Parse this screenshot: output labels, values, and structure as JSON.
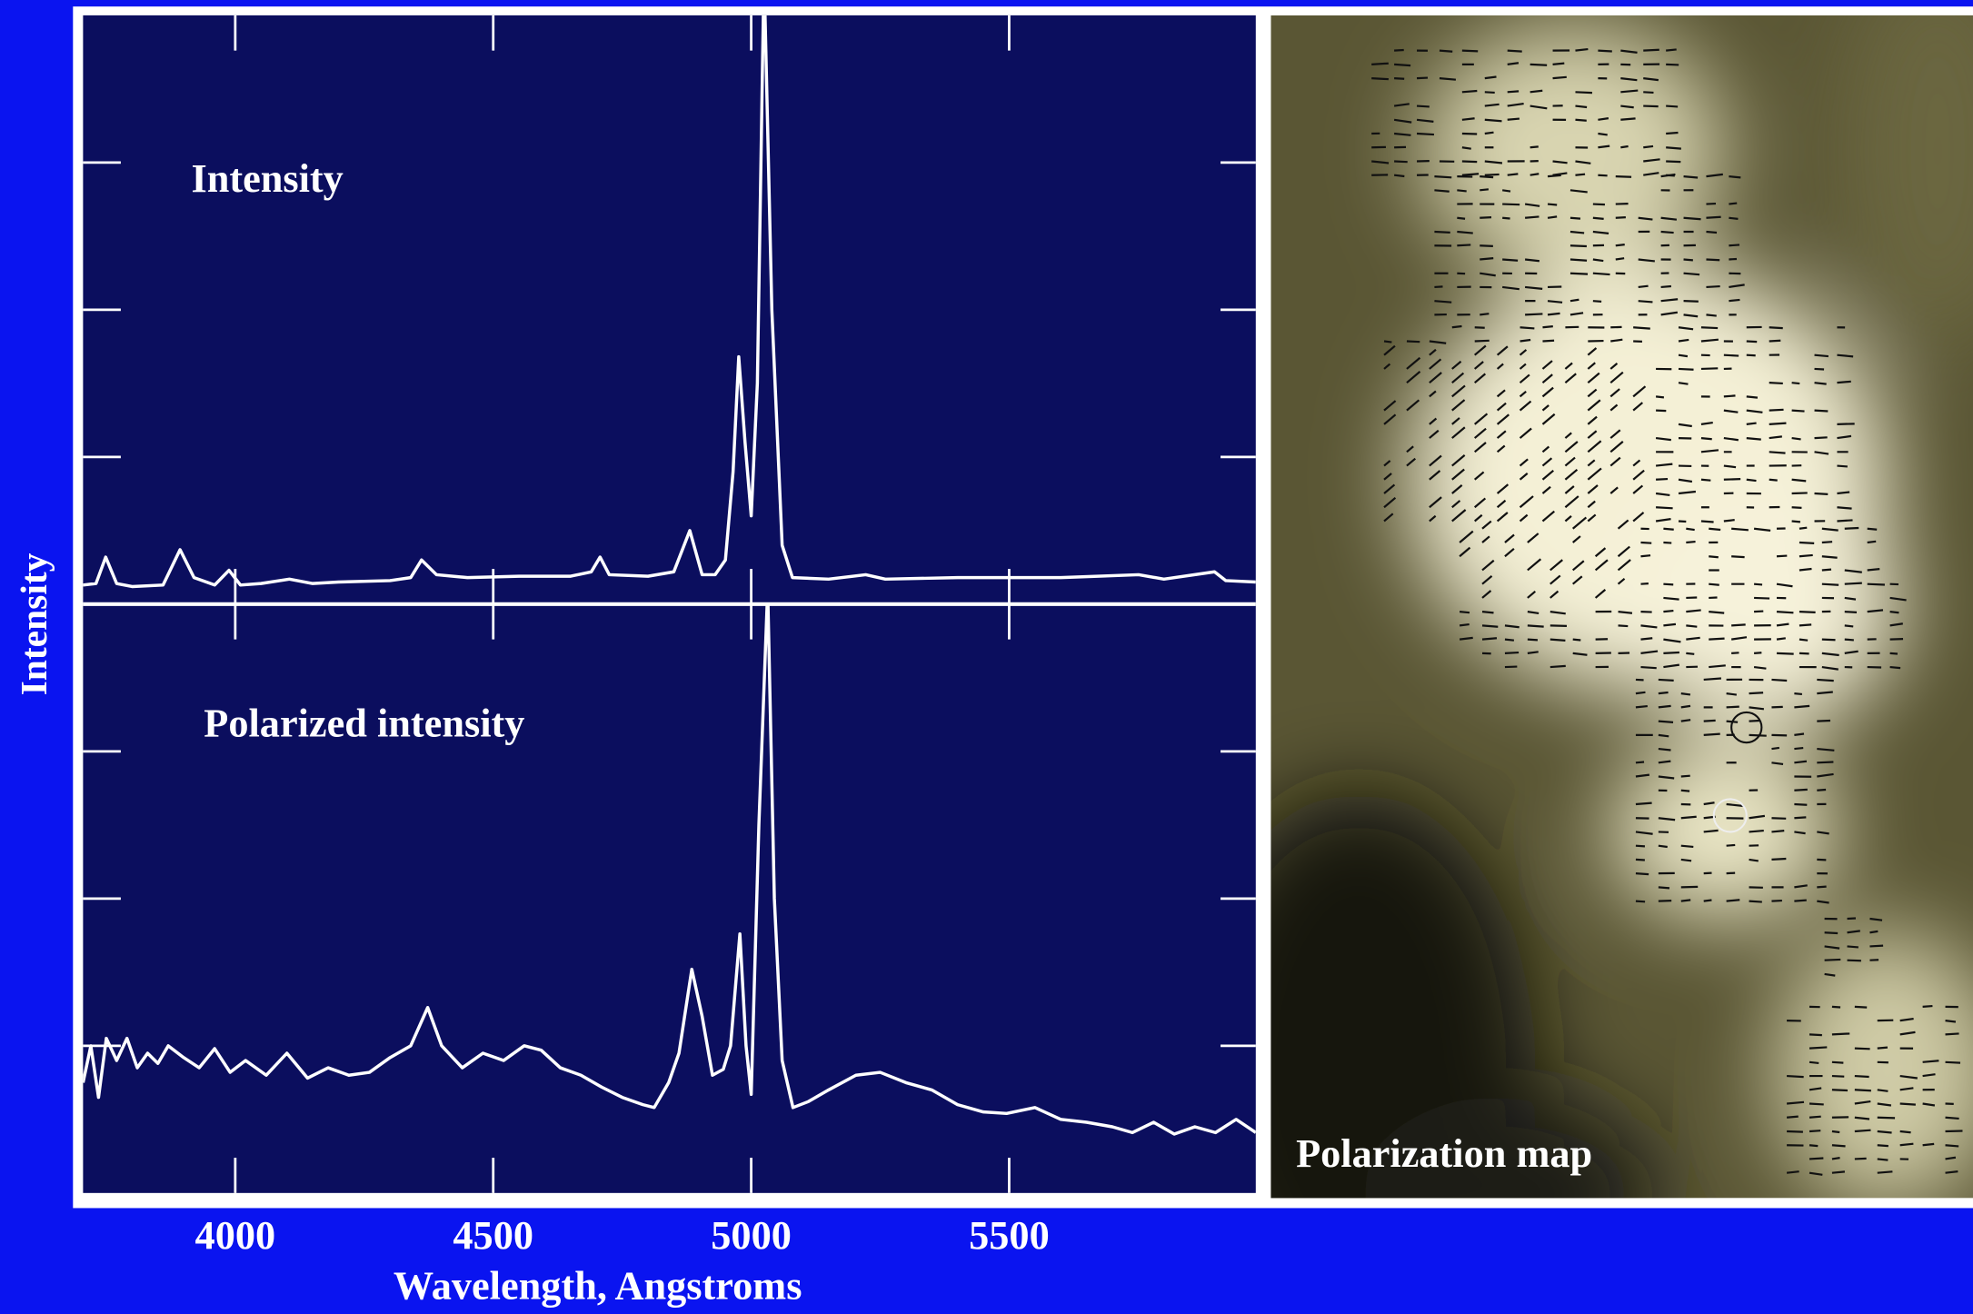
{
  "chart_data": [
    {
      "type": "line",
      "label": "Intensity",
      "ylabel": "Intensity",
      "color": "#ffffff",
      "xlim": [
        3705,
        5978
      ],
      "xticks": [
        4000,
        4500,
        5000,
        5500
      ],
      "ylim": [
        0,
        4
      ],
      "yticks": [
        1,
        2,
        3
      ],
      "x": [
        3705,
        3730,
        3749,
        3770,
        3800,
        3860,
        3893,
        3920,
        3960,
        3988,
        4010,
        4050,
        4105,
        4150,
        4200,
        4300,
        4340,
        4361,
        4390,
        4450,
        4550,
        4650,
        4690,
        4707,
        4725,
        4800,
        4850,
        4881,
        4905,
        4930,
        4950,
        4965,
        4976,
        4988,
        5000,
        5012,
        5025,
        5040,
        5060,
        5080,
        5150,
        5222,
        5260,
        5400,
        5600,
        5751,
        5800,
        5898,
        5920,
        5978
      ],
      "values": [
        0.13,
        0.14,
        0.32,
        0.14,
        0.12,
        0.13,
        0.37,
        0.18,
        0.13,
        0.23,
        0.13,
        0.14,
        0.17,
        0.14,
        0.15,
        0.16,
        0.18,
        0.3,
        0.2,
        0.18,
        0.19,
        0.19,
        0.22,
        0.32,
        0.2,
        0.19,
        0.22,
        0.5,
        0.2,
        0.2,
        0.3,
        0.9,
        1.68,
        1.1,
        0.6,
        1.5,
        4.3,
        2.0,
        0.4,
        0.18,
        0.17,
        0.2,
        0.17,
        0.18,
        0.18,
        0.2,
        0.17,
        0.22,
        0.16,
        0.15
      ]
    },
    {
      "type": "line",
      "label": "Polarized intensity",
      "xlabel": "Wavelength, Angstroms",
      "color": "#ffffff",
      "xlim": [
        3705,
        5978
      ],
      "xticks": [
        4000,
        4500,
        5000,
        5500
      ],
      "ylim": [
        0,
        4
      ],
      "yticks": [
        1,
        2,
        3
      ],
      "x": [
        3705,
        3720,
        3735,
        3750,
        3770,
        3790,
        3810,
        3830,
        3850,
        3870,
        3900,
        3930,
        3960,
        3990,
        4020,
        4060,
        4100,
        4140,
        4180,
        4220,
        4260,
        4300,
        4340,
        4373,
        4400,
        4440,
        4480,
        4520,
        4560,
        4593,
        4630,
        4670,
        4710,
        4750,
        4790,
        4812,
        4840,
        4860,
        4885,
        4905,
        4925,
        4946,
        4960,
        4978,
        4990,
        5000,
        5015,
        5032,
        5045,
        5060,
        5081,
        5110,
        5150,
        5203,
        5250,
        5300,
        5350,
        5400,
        5450,
        5495,
        5550,
        5600,
        5650,
        5700,
        5739,
        5780,
        5820,
        5860,
        5900,
        5940,
        5978
      ],
      "values": [
        0.75,
        1.0,
        0.65,
        1.05,
        0.9,
        1.05,
        0.85,
        0.95,
        0.88,
        1.0,
        0.92,
        0.85,
        0.98,
        0.82,
        0.9,
        0.8,
        0.95,
        0.78,
        0.85,
        0.8,
        0.82,
        0.92,
        1.0,
        1.26,
        1.0,
        0.85,
        0.95,
        0.9,
        1.0,
        0.97,
        0.85,
        0.8,
        0.72,
        0.65,
        0.6,
        0.58,
        0.75,
        0.95,
        1.52,
        1.2,
        0.8,
        0.84,
        1.0,
        1.76,
        1.0,
        0.67,
        2.5,
        4.1,
        2.0,
        0.9,
        0.58,
        0.62,
        0.7,
        0.8,
        0.82,
        0.75,
        0.7,
        0.6,
        0.55,
        0.54,
        0.58,
        0.5,
        0.48,
        0.45,
        0.41,
        0.48,
        0.4,
        0.45,
        0.41,
        0.5,
        0.41
      ]
    }
  ],
  "image_panel": {
    "label": "Polarization map"
  }
}
